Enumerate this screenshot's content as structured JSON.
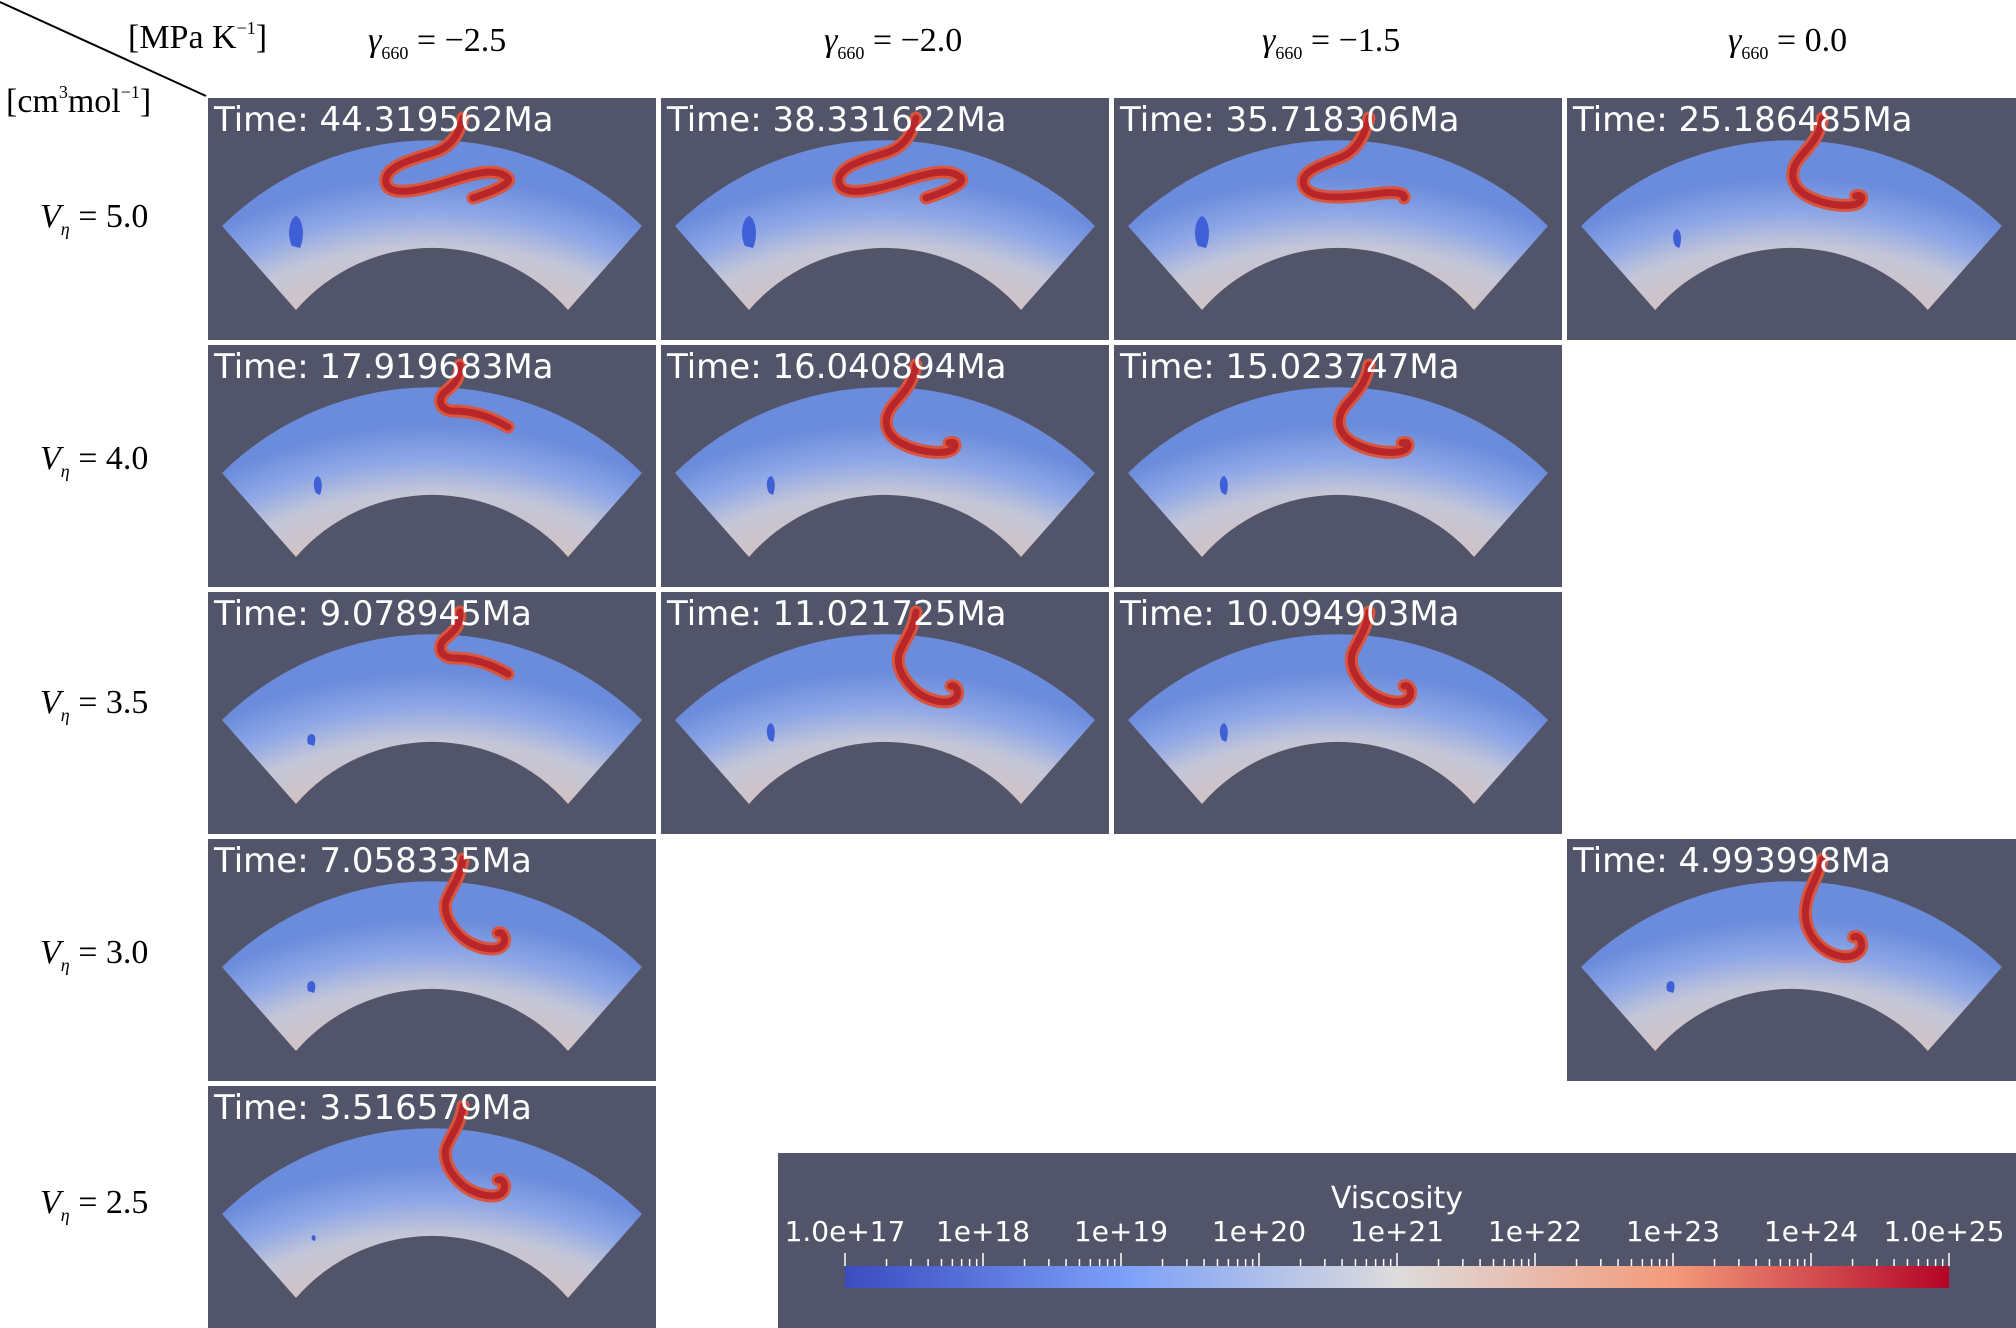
{
  "header": {
    "corner_units_col": "[MPa K",
    "corner_units_col_sup": "−1",
    "corner_units_col_end": "]",
    "corner_units_row_a": "[cm",
    "corner_units_row_sup1": "3",
    "corner_units_row_b": "mol",
    "corner_units_row_sup2": "−1",
    "corner_units_row_end": "]",
    "gamma_symbol": "γ",
    "gamma_sub": "660",
    "columns": [
      "= −2.5",
      "= −2.0",
      "= −1.5",
      "= 0.0"
    ]
  },
  "rows": {
    "v_symbol": "V",
    "v_sub": "η",
    "labels": [
      "= 5.0",
      "= 4.0",
      "= 3.5",
      "= 3.0",
      "= 2.5"
    ]
  },
  "panels": {
    "r0c0": "Time: 44.319562Ma",
    "r0c1": "Time: 38.331622Ma",
    "r0c2": "Time: 35.718306Ma",
    "r0c3": "Time: 25.186485Ma",
    "r1c0": "Time: 17.919683Ma",
    "r1c1": "Time: 16.040894Ma",
    "r1c2": "Time: 15.023747Ma",
    "r2c0": "Time: 9.078945Ma",
    "r2c1": "Time: 11.021725Ma",
    "r2c2": "Time: 10.094903Ma",
    "r3c0": "Time: 7.058335Ma",
    "r3c3": "Time: 4.993998Ma",
    "r4c0": "Time: 3.516579Ma"
  },
  "legend": {
    "title": "Viscosity",
    "ticks": [
      "1.0e+17",
      "1e+18",
      "1e+19",
      "1e+20",
      "1e+21",
      "1e+22",
      "1e+23",
      "1e+24",
      "1.0e+25"
    ]
  },
  "colors": {
    "panel_bg": "#525469",
    "colormap_low": "#3b4cc0",
    "colormap_mid": "#dddcdc",
    "colormap_high": "#b40426",
    "slab": "#b8262a"
  }
}
